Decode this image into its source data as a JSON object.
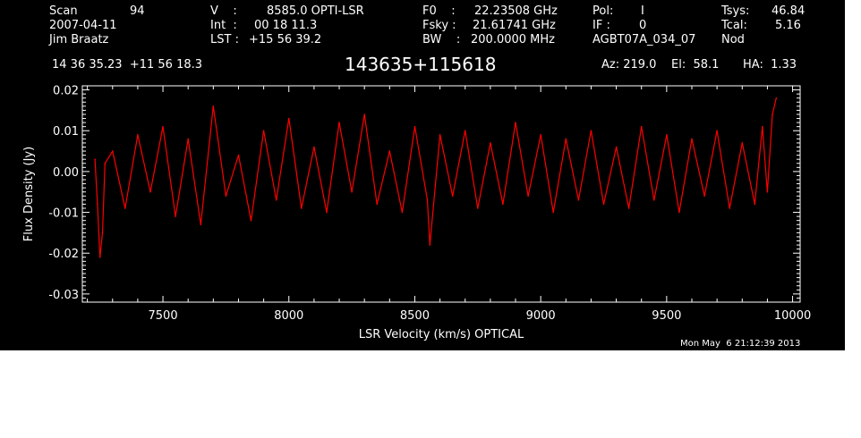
{
  "header": {
    "scan_label": "Scan",
    "scan_value": "94",
    "date": "2007-04-11",
    "observer": "Jim Braatz",
    "v_label": "V    :",
    "v_value": "8585.0 OPTI-LSR",
    "int_label": "Int  :",
    "int_value": "00 18 11.3",
    "lst_label": "LST :",
    "lst_value": "+15 56 39.2",
    "f0_label": "F0    :",
    "f0_value": "22.23508 GHz",
    "fsky_label": "Fsky :",
    "fsky_value": "21.61741 GHz",
    "bw_label": "BW    :",
    "bw_value": "200.0000 MHz",
    "pol_label": "Pol:",
    "pol_value": "I",
    "if_label": "IF :",
    "if_value": "0",
    "project": "AGBT07A_034_07",
    "tsys_label": "Tsys:",
    "tsys_value": "46.84",
    "tcal_label": "Tcal:",
    "tcal_value": "5.16",
    "proc": "Nod",
    "coords": "14 36 35.23  +11 56 18.3",
    "source": "143635+115618",
    "az": "Az: 219.0",
    "el": "El:  58.1",
    "ha": "HA:  1.33"
  },
  "timestamp": "Mon May  6 21:12:39 2013",
  "colors": {
    "background": "#000000",
    "axes": "#ffffff",
    "series": "#ff0000"
  },
  "chart_data": {
    "type": "line",
    "xlabel": "LSR Velocity (km/s) OPTICAL",
    "ylabel": "Flux Density (Jy)",
    "xlim": [
      7180,
      10030
    ],
    "ylim": [
      -0.032,
      0.021
    ],
    "xticks": [
      7500,
      8000,
      8500,
      9000,
      9500,
      10000
    ],
    "xtick_labels": [
      "7500",
      "8000",
      "8500",
      "9000",
      "9500",
      "10000"
    ],
    "yticks": [
      0.02,
      0.01,
      0.0,
      -0.01,
      -0.02,
      -0.03
    ],
    "ytick_labels": [
      "0.02",
      "0.01",
      "0.00",
      "-0.01",
      "-0.02",
      "-0.03"
    ],
    "grid": false,
    "series": [
      {
        "x": [
          7230,
          7240,
          7250,
          7260,
          7270,
          7300,
          7350,
          7400,
          7450,
          7500,
          7550,
          7600,
          7650,
          7700,
          7750,
          7800,
          7850,
          7900,
          7950,
          8000,
          8050,
          8100,
          8150,
          8200,
          8250,
          8300,
          8350,
          8400,
          8450,
          8500,
          8550,
          8560,
          8600,
          8650,
          8700,
          8750,
          8800,
          8850,
          8900,
          8950,
          9000,
          9050,
          9100,
          9150,
          9200,
          9250,
          9300,
          9350,
          9400,
          9450,
          9500,
          9550,
          9600,
          9650,
          9700,
          9750,
          9800,
          9850,
          9880,
          9900,
          9920,
          9935
        ],
        "y": [
          0.003,
          -0.008,
          -0.021,
          -0.015,
          0.002,
          0.005,
          -0.009,
          0.009,
          -0.005,
          0.011,
          -0.011,
          0.008,
          -0.013,
          0.016,
          -0.006,
          0.004,
          -0.012,
          0.01,
          -0.007,
          0.013,
          -0.009,
          0.006,
          -0.01,
          0.012,
          -0.005,
          0.014,
          -0.008,
          0.005,
          -0.01,
          0.011,
          -0.007,
          -0.018,
          0.009,
          -0.006,
          0.01,
          -0.009,
          0.007,
          -0.008,
          0.012,
          -0.006,
          0.009,
          -0.01,
          0.008,
          -0.007,
          0.01,
          -0.008,
          0.006,
          -0.009,
          0.011,
          -0.007,
          0.009,
          -0.01,
          0.008,
          -0.006,
          0.01,
          -0.009,
          0.007,
          -0.008,
          0.011,
          -0.005,
          0.014,
          0.018
        ]
      }
    ]
  }
}
